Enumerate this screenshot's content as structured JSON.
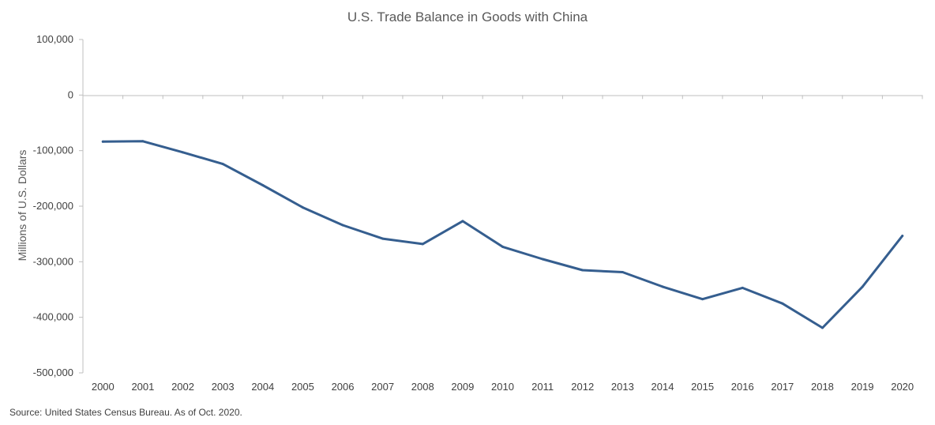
{
  "chart_data": {
    "type": "line",
    "title": "U.S. Trade Balance in Goods with China",
    "ylabel": "Millions of U.S. Dollars",
    "xlabel": "",
    "ylim": [
      -500000,
      100000
    ],
    "yticks": [
      100000,
      0,
      -100000,
      -200000,
      -300000,
      -400000,
      -500000
    ],
    "ytick_labels": [
      "100,000",
      "0",
      "-100,000",
      "-200,000",
      "-300,000",
      "-400,000",
      "-500,000"
    ],
    "categories": [
      "2000",
      "2001",
      "2002",
      "2003",
      "2004",
      "2005",
      "2006",
      "2007",
      "2008",
      "2009",
      "2010",
      "2011",
      "2012",
      "2013",
      "2014",
      "2015",
      "2016",
      "2017",
      "2018",
      "2019",
      "2020"
    ],
    "series": [
      {
        "values": [
          -83833,
          -83096,
          -103065,
          -124068,
          -162254,
          -202278,
          -234101,
          -258506,
          -268040,
          -226877,
          -273042,
          -295250,
          -315102,
          -318684,
          -344818,
          -367328,
          -346997,
          -375168,
          -418953,
          -345203,
          -253500
        ]
      }
    ],
    "line_color": "#355E8F",
    "grid": false,
    "legend": "none"
  },
  "source_note": "Source: United States Census Bureau. As of Oct. 2020."
}
